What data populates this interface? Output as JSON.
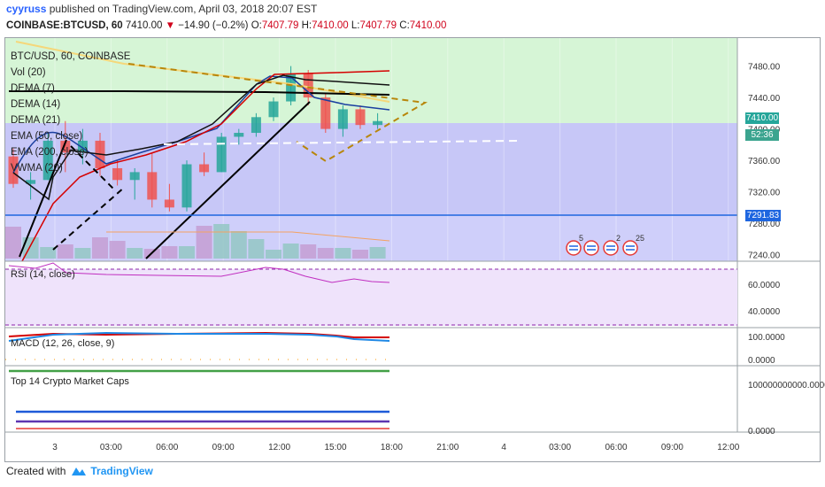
{
  "header": {
    "user": "cyyruss",
    "published": "published on TradingView.com, April 03, 2018 20:07 EST",
    "symbol_line": "COINBASE:BTCUSD, 60",
    "last": "7410.00",
    "change": "−14.90 (−0.2%)",
    "o_label": "O:",
    "o_val": "7407.79",
    "h_label": "H:",
    "h_val": "7410.00",
    "l_label": "L:",
    "l_val": "7407.79",
    "c_label": "C:",
    "c_val": "7410.00",
    "arrow": "▼"
  },
  "legend": {
    "title": "BTC/USD, 60, COINBASE",
    "items": [
      "Vol (20)",
      "DEMA (7)",
      "DEMA (14)",
      "DEMA (21)",
      "EMA (50, close)",
      "EMA (200, close)",
      "VWMA (20)"
    ]
  },
  "panes": {
    "rsi": "RSI (14, close)",
    "macd": "MACD (12, 26, close, 9)",
    "caps": "Top 14 Crypto Market Caps"
  },
  "price_tags": {
    "last": "7410.00",
    "countdown": "52:36",
    "level": "7291.83"
  },
  "event_badges": [
    "5",
    "2",
    "25"
  ],
  "footer": {
    "created": "Created with",
    "brand": "TradingView"
  },
  "colors": {
    "up": "#26a69a",
    "down": "#ef5350",
    "upper_zone": "#d6f5d6",
    "lower_zone": "#c7c7f7",
    "rsi_bg": "#efe3fb",
    "dema7": "#000000",
    "dema14": "#1a237e",
    "dema21": "#d50000"
  },
  "chart_data": {
    "type": "candlestick",
    "x_ticks": [
      "3",
      "03:00",
      "06:00",
      "09:00",
      "12:00",
      "15:00",
      "18:00",
      "21:00",
      "4",
      "03:00",
      "06:00",
      "09:00",
      "12:00"
    ],
    "y_ticks": [
      7240,
      7280,
      7320,
      7360,
      7400,
      7440,
      7480
    ],
    "ylim": [
      7235,
      7510
    ],
    "horizontal_levels": [
      7410.0,
      7291.83
    ],
    "candles": [
      [
        7365,
        7375,
        7325,
        7330
      ],
      [
        7330,
        7345,
        7310,
        7335
      ],
      [
        7335,
        7395,
        7335,
        7385
      ],
      [
        7385,
        7410,
        7345,
        7370
      ],
      [
        7370,
        7400,
        7355,
        7385
      ],
      [
        7385,
        7395,
        7340,
        7350
      ],
      [
        7350,
        7360,
        7328,
        7335
      ],
      [
        7335,
        7350,
        7310,
        7345
      ],
      [
        7345,
        7370,
        7300,
        7310
      ],
      [
        7310,
        7330,
        7295,
        7300
      ],
      [
        7300,
        7360,
        7295,
        7355
      ],
      [
        7355,
        7370,
        7340,
        7345
      ],
      [
        7345,
        7395,
        7345,
        7390
      ],
      [
        7390,
        7400,
        7380,
        7395
      ],
      [
        7395,
        7420,
        7390,
        7415
      ],
      [
        7415,
        7440,
        7410,
        7435
      ],
      [
        7435,
        7480,
        7430,
        7470
      ],
      [
        7470,
        7475,
        7430,
        7440
      ],
      [
        7440,
        7445,
        7395,
        7400
      ],
      [
        7400,
        7430,
        7390,
        7425
      ],
      [
        7425,
        7430,
        7400,
        7405
      ],
      [
        7405,
        7420,
        7400,
        7410
      ]
    ],
    "volume_bars": [
      36,
      24,
      13,
      16,
      12,
      24,
      20,
      12,
      11,
      14,
      14,
      37,
      39,
      31,
      22,
      10,
      17,
      16,
      12,
      12,
      10,
      13
    ]
  }
}
